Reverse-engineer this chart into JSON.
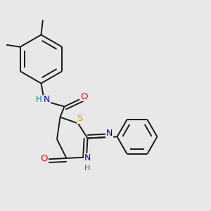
{
  "bg_color": "#e8e8e8",
  "bond_color": "#1a1a1a",
  "atom_colors": {
    "N": "#0000cd",
    "O": "#ff0000",
    "S": "#ccaa00",
    "C": "#1a1a1a",
    "H": "#008080"
  },
  "lw": 1.4,
  "fs": 9.0,
  "xlim": [
    0.0,
    1.0
  ],
  "ylim": [
    0.0,
    1.0
  ]
}
